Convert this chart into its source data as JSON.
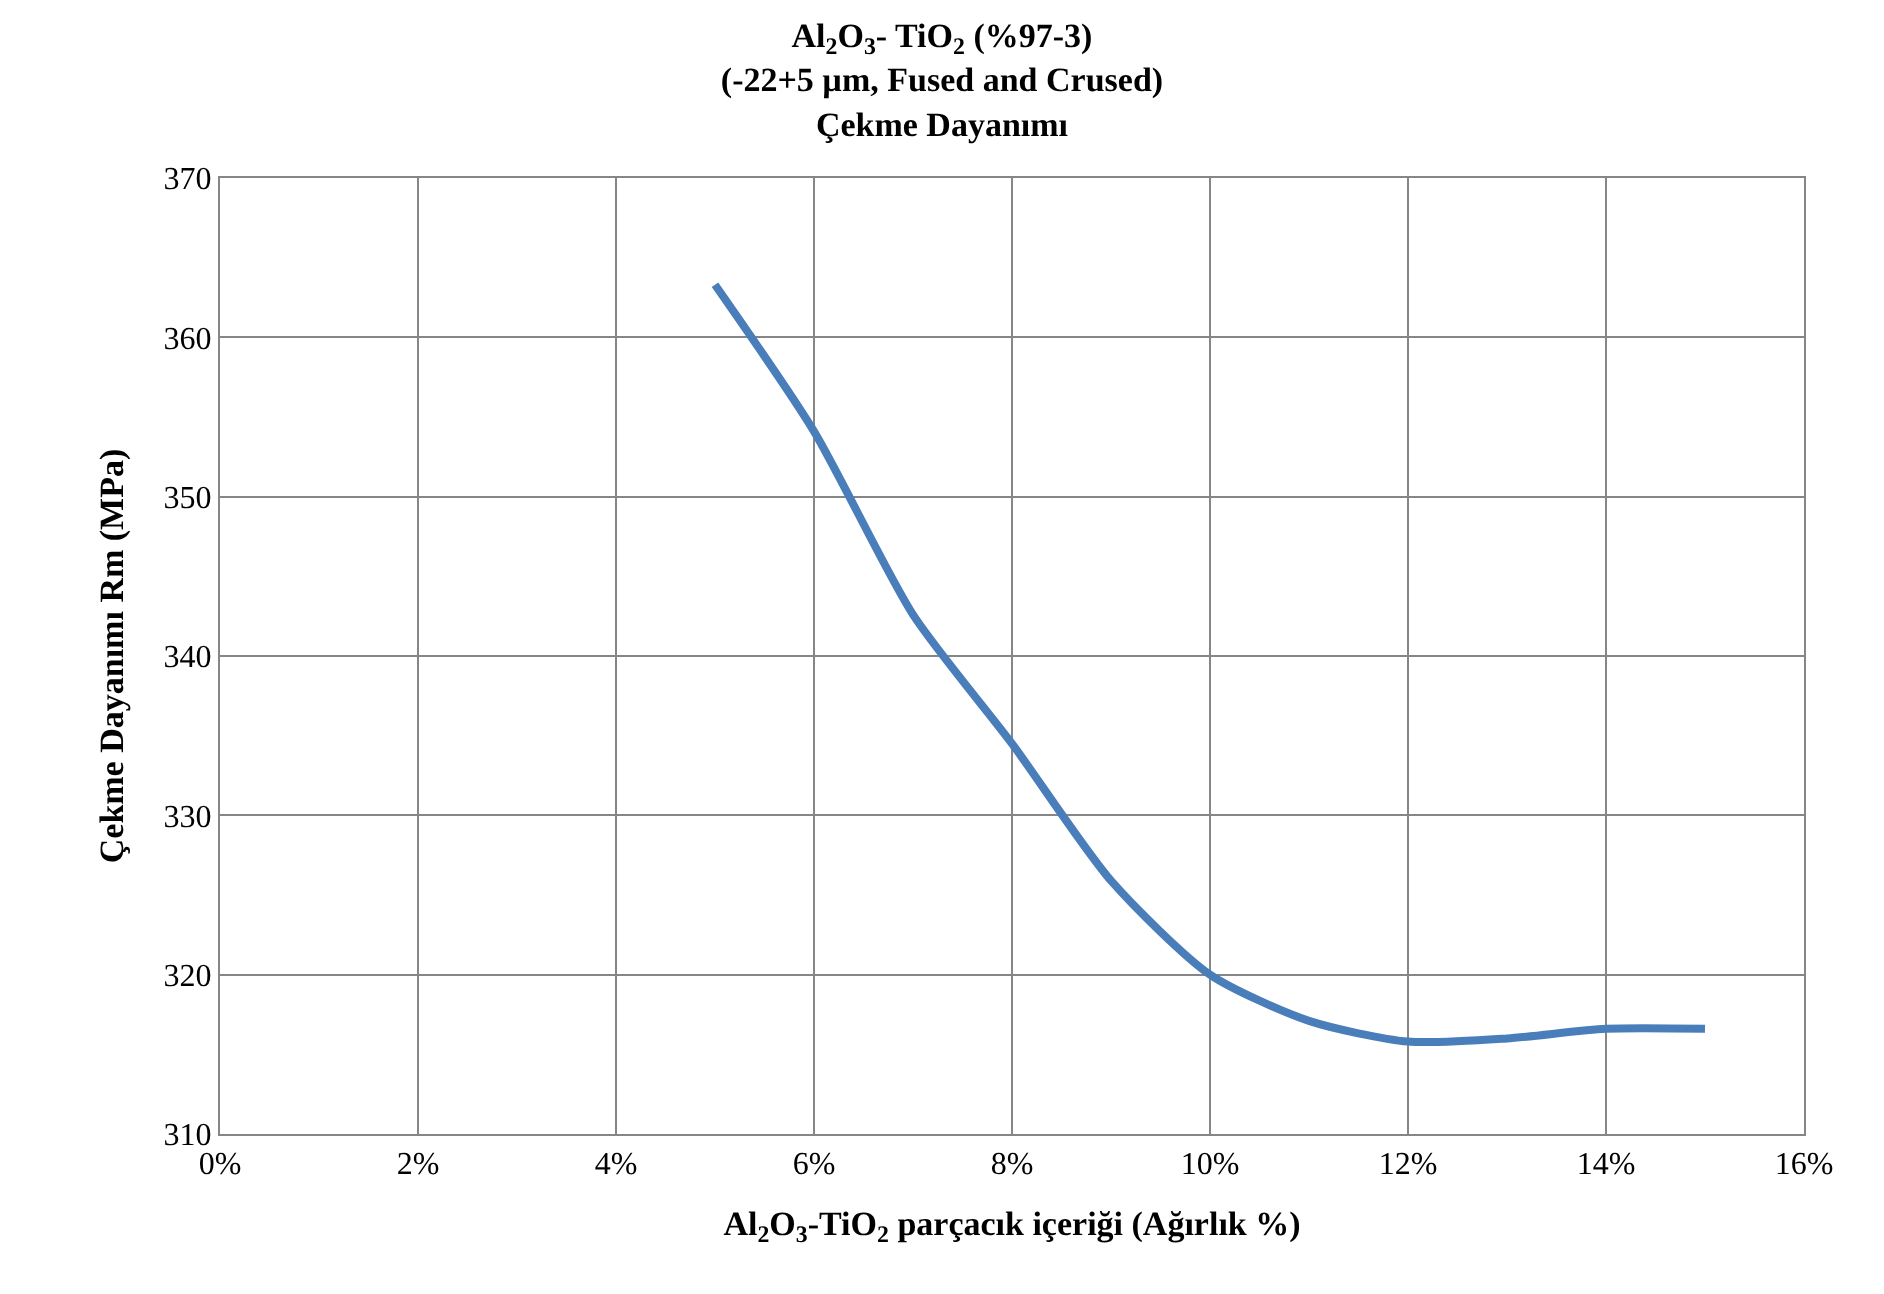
{
  "chart_data": {
    "type": "line",
    "title": "Al$_{2}$O$_{3}$- TiO$_{2}$ (%97-3)\n(-22+5 µm, Fused and Crused)\nÇekme Dayanımı",
    "xlabel": "Al$_{2}$O$_{3}$-TiO$_{2}$ parçacık içeriği (Ağırlık %)",
    "ylabel": "Çekme Dayanımı Rm (MPa)",
    "x": [
      5,
      6,
      7,
      8,
      9,
      10,
      11,
      12,
      13,
      14,
      15
    ],
    "series": [
      {
        "color": "#4a7ebb",
        "values": [
          363.3,
          354.1,
          342.6,
          334.5,
          325.9,
          320.0,
          317.1,
          315.8,
          316.0,
          316.6,
          316.6
        ]
      }
    ],
    "xlim": [
      0,
      16
    ],
    "xticks": [
      {
        "value": 0,
        "label": "0%"
      },
      {
        "value": 2,
        "label": "2%"
      },
      {
        "value": 4,
        "label": "4%"
      },
      {
        "value": 6,
        "label": "6%"
      },
      {
        "value": 8,
        "label": "8%"
      },
      {
        "value": 10,
        "label": "10%"
      },
      {
        "value": 12,
        "label": "12%"
      },
      {
        "value": 14,
        "label": "14%"
      },
      {
        "value": 16,
        "label": "16%"
      }
    ],
    "ylim": [
      310,
      370
    ],
    "yticks": [
      310,
      320,
      330,
      340,
      350,
      360,
      370
    ],
    "grid": true,
    "marker": "none",
    "line_style": "solid"
  }
}
